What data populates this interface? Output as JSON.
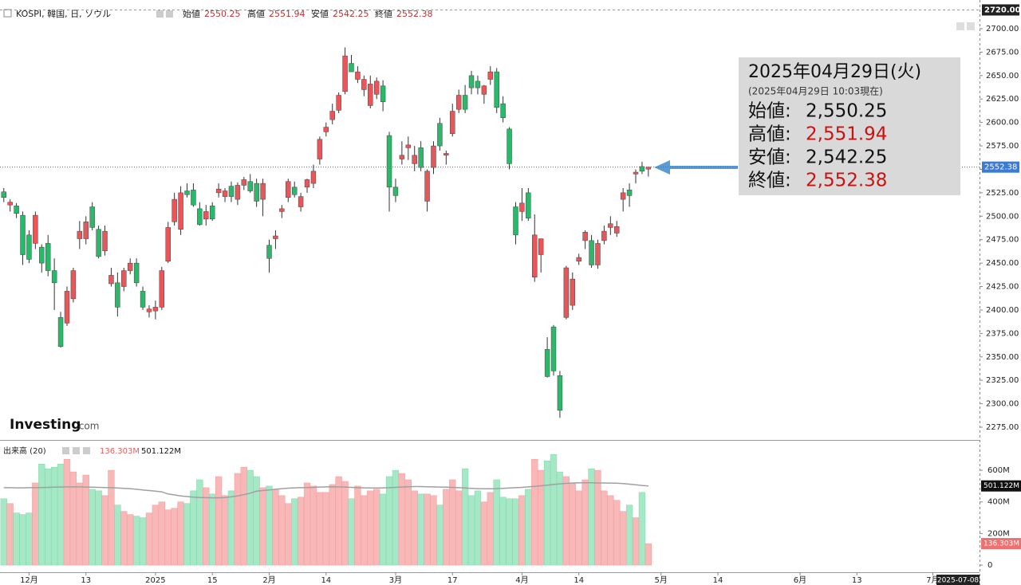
{
  "header": {
    "symbol": "KOSPI, 韓国, 日, ソウル",
    "open_label": "始値",
    "high_label": "高値",
    "low_label": "安値",
    "close_label": "終値"
  },
  "info_box": {
    "date": "2025年04月29日(火)",
    "asof": "(2025年04月29日 10:03現在)",
    "rows": [
      {
        "label": "始値:",
        "value": "2,550.25",
        "color": "#111111"
      },
      {
        "label": "高値:",
        "value": "2,551.94",
        "color": "#cc1111"
      },
      {
        "label": "安値:",
        "value": "2,542.25",
        "color": "#111111"
      },
      {
        "label": "終値:",
        "value": "2,552.38",
        "color": "#cc1111"
      }
    ]
  },
  "logo": {
    "brand": "Investing",
    "suffix": ".com"
  },
  "chart_data": {
    "type": "candlestick",
    "open": [
      2526,
      2512,
      2511,
      2501,
      2480,
      2471,
      2467,
      2471,
      2442,
      2392,
      2386,
      2412,
      2476,
      2476,
      2510,
      2486,
      2463,
      2428,
      2429,
      2425,
      2442,
      2450,
      2420,
      2398,
      2399,
      2403,
      2452,
      2494,
      2486,
      2527,
      2528,
      2508,
      2497,
      2511,
      2525,
      2521,
      2532,
      2518,
      2533,
      2537,
      2535,
      2518,
      2469,
      2476,
      2505,
      2520,
      2531,
      2510,
      2531,
      2535,
      2561,
      2590,
      2603,
      2613,
      2633,
      2663,
      2646,
      2635,
      2618,
      2630,
      2639,
      2586,
      2531,
      2561,
      2573,
      2556,
      2573,
      2516,
      2552,
      2599,
      2565,
      2588,
      2614,
      2629,
      2650,
      2644,
      2630,
      2646,
      2654,
      2620,
      2593,
      2510,
      2505,
      2525,
      2435,
      2459,
      2358,
      2382,
      2330,
      2392,
      2405,
      2452,
      2474,
      2474,
      2448,
      2474,
      2488,
      2482,
      2518,
      2528,
      2545,
      2553,
      2550.25
    ],
    "high": [
      2530,
      2518,
      2514,
      2505,
      2485,
      2505,
      2470,
      2480,
      2455,
      2398,
      2425,
      2445,
      2495,
      2500,
      2515,
      2490,
      2490,
      2445,
      2440,
      2445,
      2455,
      2455,
      2425,
      2405,
      2410,
      2446,
      2494,
      2525,
      2532,
      2535,
      2535,
      2515,
      2512,
      2515,
      2535,
      2530,
      2537,
      2536,
      2542,
      2545,
      2540,
      2540,
      2475,
      2485,
      2512,
      2540,
      2537,
      2525,
      2540,
      2555,
      2585,
      2600,
      2620,
      2632,
      2680,
      2672,
      2660,
      2650,
      2650,
      2648,
      2645,
      2590,
      2540,
      2580,
      2585,
      2575,
      2580,
      2550,
      2580,
      2605,
      2570,
      2620,
      2635,
      2640,
      2655,
      2650,
      2640,
      2660,
      2658,
      2628,
      2595,
      2515,
      2530,
      2530,
      2502,
      2475,
      2371,
      2384,
      2335,
      2447,
      2440,
      2460,
      2485,
      2480,
      2475,
      2490,
      2500,
      2495,
      2530,
      2535,
      2550,
      2558,
      2551.94
    ],
    "low": [
      2515,
      2505,
      2498,
      2448,
      2450,
      2465,
      2440,
      2436,
      2400,
      2360,
      2383,
      2408,
      2465,
      2470,
      2485,
      2455,
      2458,
      2425,
      2393,
      2420,
      2438,
      2425,
      2400,
      2392,
      2390,
      2400,
      2450,
      2490,
      2480,
      2520,
      2510,
      2490,
      2490,
      2495,
      2520,
      2515,
      2515,
      2512,
      2528,
      2525,
      2510,
      2500,
      2440,
      2465,
      2498,
      2515,
      2520,
      2505,
      2525,
      2530,
      2555,
      2585,
      2598,
      2610,
      2630,
      2655,
      2642,
      2628,
      2615,
      2625,
      2612,
      2505,
      2515,
      2555,
      2560,
      2548,
      2548,
      2505,
      2545,
      2570,
      2555,
      2585,
      2610,
      2610,
      2630,
      2630,
      2620,
      2640,
      2610,
      2600,
      2550,
      2470,
      2495,
      2495,
      2430,
      2440,
      2328,
      2330,
      2285,
      2390,
      2400,
      2448,
      2465,
      2445,
      2444,
      2470,
      2480,
      2478,
      2505,
      2510,
      2535,
      2545,
      2542.25
    ],
    "close": [
      2520,
      2515,
      2503,
      2459,
      2454,
      2501,
      2450,
      2442,
      2429,
      2361,
      2420,
      2442,
      2484,
      2494,
      2488,
      2457,
      2484,
      2437,
      2403,
      2442,
      2450,
      2429,
      2403,
      2401,
      2403,
      2442,
      2488,
      2518,
      2525,
      2523,
      2512,
      2491,
      2505,
      2497,
      2529,
      2527,
      2521,
      2533,
      2539,
      2527,
      2516,
      2535,
      2455,
      2479,
      2508,
      2537,
      2523,
      2521,
      2539,
      2548,
      2582,
      2595,
      2612,
      2629,
      2671,
      2654,
      2654,
      2646,
      2641,
      2644,
      2622,
      2531,
      2522,
      2565,
      2576,
      2565,
      2552,
      2548,
      2575,
      2575,
      2567,
      2612,
      2629,
      2614,
      2637,
      2637,
      2639,
      2654,
      2616,
      2605,
      2556,
      2480,
      2514,
      2498,
      2480,
      2476,
      2329,
      2335,
      2293,
      2445,
      2433,
      2456,
      2483,
      2448,
      2471,
      2484,
      2492,
      2489,
      2525,
      2522,
      2547,
      2548,
      2552.38
    ],
    "up_color": "#e8565a",
    "down_color": "#2cb86a",
    "ylim": [
      2261.4,
      2730.6
    ],
    "yticks": [
      {
        "value": 2275,
        "label": "2275.00"
      },
      {
        "value": 2300,
        "label": "2300.00"
      },
      {
        "value": 2325,
        "label": "2325.00"
      },
      {
        "value": 2350,
        "label": "2350.00"
      },
      {
        "value": 2375,
        "label": "2375.00"
      },
      {
        "value": 2400,
        "label": "2400.00"
      },
      {
        "value": 2425,
        "label": "2425.00"
      },
      {
        "value": 2450,
        "label": "2450.00"
      },
      {
        "value": 2475,
        "label": "2475.00"
      },
      {
        "value": 2500,
        "label": "2500.00"
      },
      {
        "value": 2525,
        "label": "2525.00"
      },
      {
        "value": 2550,
        "label": "2550.00"
      },
      {
        "value": 2575,
        "label": "2575.00"
      },
      {
        "value": 2600,
        "label": "2600.00"
      },
      {
        "value": 2625,
        "label": "2625.00"
      },
      {
        "value": 2650,
        "label": "2650.00"
      },
      {
        "value": 2675,
        "label": "2675.00"
      },
      {
        "value": 2700,
        "label": "2700.00"
      }
    ],
    "top_line": {
      "value": 2720,
      "label": "2720.00"
    },
    "xlim": [
      -0.6,
      154.4
    ],
    "xticks": [
      {
        "value": 4,
        "label": "12月"
      },
      {
        "value": 13,
        "label": "13"
      },
      {
        "value": 24,
        "label": "2025"
      },
      {
        "value": 33,
        "label": "15"
      },
      {
        "value": 42,
        "label": "2月"
      },
      {
        "value": 51,
        "label": "14"
      },
      {
        "value": 62,
        "label": "3月"
      },
      {
        "value": 71,
        "label": "17"
      },
      {
        "value": 82,
        "label": "4月"
      },
      {
        "value": 91,
        "label": "14"
      },
      {
        "value": 104,
        "label": "5月"
      },
      {
        "value": 113,
        "label": "14"
      },
      {
        "value": 126,
        "label": "6月"
      },
      {
        "value": 135,
        "label": "13"
      },
      {
        "value": 147,
        "label": "7月"
      }
    ],
    "cursor_date": "2025-07-08",
    "volume": {
      "legend": "出来高 (20)",
      "up_color": "#f9b8b8",
      "down_color": "#a6e8c6",
      "ma_color": "#a0a0a0",
      "values": [
        420,
        390,
        330,
        320,
        330,
        520,
        640,
        610,
        620,
        640,
        670,
        590,
        520,
        570,
        480,
        470,
        440,
        600,
        380,
        340,
        320,
        310,
        300,
        330,
        380,
        400,
        350,
        360,
        400,
        390,
        470,
        540,
        490,
        450,
        560,
        440,
        470,
        580,
        620,
        600,
        560,
        490,
        500,
        480,
        440,
        390,
        420,
        430,
        520,
        500,
        460,
        460,
        510,
        560,
        530,
        420,
        500,
        440,
        470,
        480,
        450,
        560,
        600,
        580,
        540,
        470,
        450,
        450,
        440,
        380,
        480,
        540,
        470,
        610,
        440,
        470,
        400,
        460,
        540,
        430,
        420,
        420,
        440,
        480,
        670,
        600,
        660,
        700,
        590,
        560,
        520,
        470,
        540,
        610,
        600,
        470,
        440,
        410,
        340,
        380,
        300,
        460,
        136.303
      ],
      "ma": [
        490,
        490,
        489,
        489,
        490,
        490,
        491,
        492,
        493,
        494,
        495,
        495,
        495,
        494,
        493,
        492,
        491,
        490,
        488,
        486,
        484,
        480,
        476,
        472,
        468,
        464,
        450,
        444,
        438,
        434,
        430,
        428,
        427,
        426,
        426,
        428,
        432,
        438,
        446,
        455,
        468,
        472,
        476,
        480,
        484,
        487,
        489,
        490,
        491,
        492,
        494,
        495,
        496,
        495,
        494,
        492,
        490,
        489,
        488,
        488,
        489,
        490,
        492,
        494,
        496,
        497,
        497,
        496,
        495,
        494,
        493,
        492,
        490,
        488,
        486,
        484,
        483,
        483,
        484,
        486,
        488,
        490,
        492,
        495,
        498,
        502,
        506,
        510,
        514,
        517,
        520,
        521,
        521,
        521,
        520,
        520,
        519,
        518,
        516,
        512,
        508,
        504,
        501.122
      ],
      "value_label": "136.303M",
      "ma_label": "501.122M",
      "ylim": [
        -45,
        787
      ],
      "yticks": [
        {
          "value": 0,
          "label": "0"
        },
        {
          "value": 200,
          "label": "200M"
        },
        {
          "value": 400,
          "label": "400M"
        },
        {
          "value": 600,
          "label": "600M"
        }
      ]
    }
  }
}
